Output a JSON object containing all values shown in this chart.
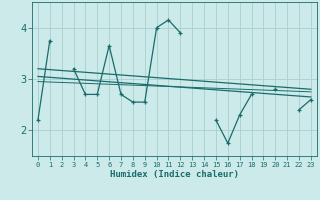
{
  "xlabel": "Humidex (Indice chaleur)",
  "bg_color": "#cceaea",
  "grid_color": "#aacece",
  "line_color": "#1a6b6b",
  "x_values": [
    0,
    1,
    2,
    3,
    4,
    5,
    6,
    7,
    8,
    9,
    10,
    11,
    12,
    13,
    14,
    15,
    16,
    17,
    18,
    19,
    20,
    21,
    22,
    23
  ],
  "series1": [
    2.2,
    3.75,
    null,
    3.2,
    2.7,
    2.7,
    3.65,
    2.7,
    2.55,
    2.55,
    4.0,
    4.15,
    3.9,
    null,
    null,
    2.2,
    1.75,
    2.3,
    2.7,
    null,
    2.8,
    null,
    2.4,
    2.6
  ],
  "trend1_x": [
    0,
    23
  ],
  "trend1_y": [
    3.2,
    2.8
  ],
  "trend2_x": [
    0,
    23
  ],
  "trend2_y": [
    3.05,
    2.65
  ],
  "trend3_x": [
    0,
    23
  ],
  "trend3_y": [
    2.95,
    2.75
  ],
  "ylim_min": 1.5,
  "ylim_max": 4.5,
  "yticks": [
    2,
    3,
    4
  ],
  "xlim_min": -0.5,
  "xlim_max": 23.5
}
